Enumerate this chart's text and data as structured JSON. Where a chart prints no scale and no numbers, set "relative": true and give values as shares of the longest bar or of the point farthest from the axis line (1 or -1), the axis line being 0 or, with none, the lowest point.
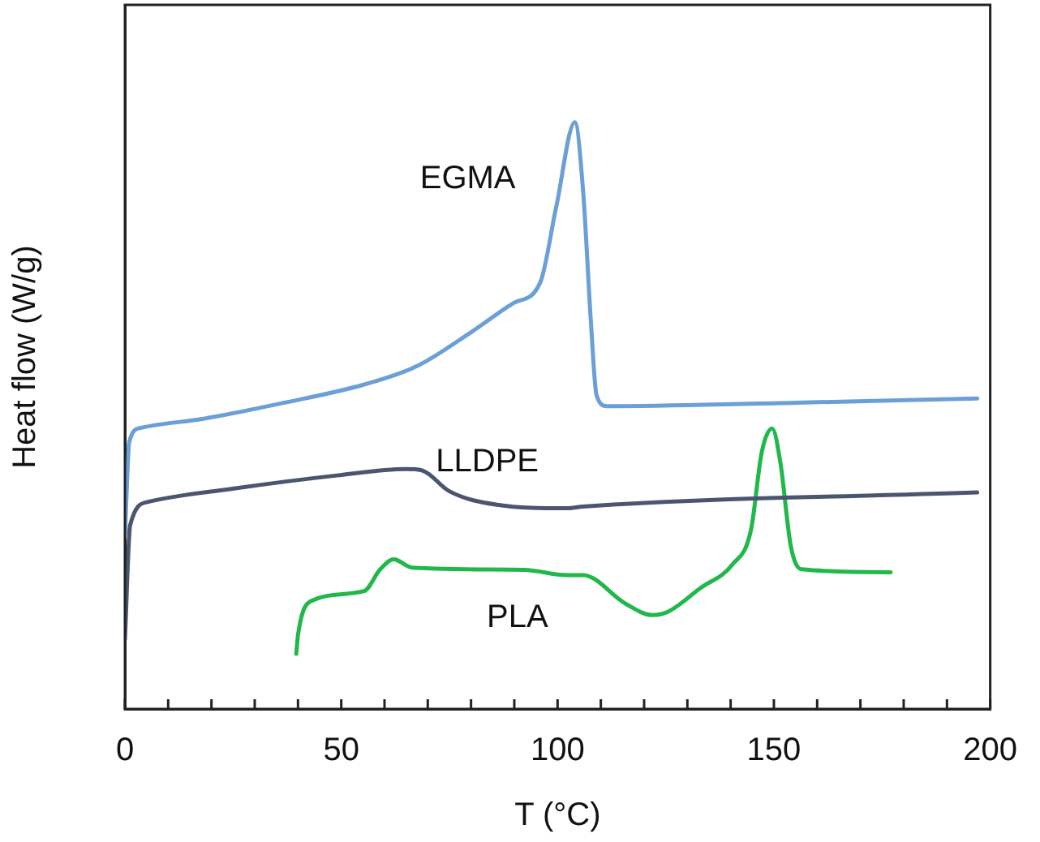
{
  "chart_data": {
    "type": "line",
    "xlabel": "T (°C)",
    "ylabel": "Heat flow (W/g)",
    "relative": true,
    "xlim": [
      0,
      200
    ],
    "xticks": [
      0,
      {
        "value": 10,
        "label": null
      },
      {
        "value": 20,
        "label": null
      },
      {
        "value": 30,
        "label": null
      },
      {
        "value": 40,
        "label": null
      },
      50,
      {
        "value": 60,
        "label": null
      },
      {
        "value": 70,
        "label": null
      },
      {
        "value": 80,
        "label": null
      },
      {
        "value": 90,
        "label": null
      },
      100,
      {
        "value": 110,
        "label": null
      },
      {
        "value": 120,
        "label": null
      },
      {
        "value": 130,
        "label": null
      },
      {
        "value": 140,
        "label": null
      },
      150,
      {
        "value": 160,
        "label": null
      },
      {
        "value": 170,
        "label": null
      },
      {
        "value": 180,
        "label": null
      },
      {
        "value": 190,
        "label": null
      },
      200
    ],
    "grid": false,
    "legend": false,
    "marker": "none",
    "line_style": "solid",
    "series": [
      {
        "name": "EGMA",
        "color": "#6a9fd8",
        "x": [
          0,
          1,
          3.6,
          18.4,
          36.9,
          55.3,
          67.7,
          80,
          89.9,
          96,
          99.7,
          104,
          105.9,
          107.7,
          109,
          111.4,
          155,
          197
        ],
        "values": [
          0.294,
          0.455,
          0.479,
          0.495,
          0.522,
          0.553,
          0.585,
          0.642,
          0.692,
          0.727,
          0.856,
          1.0,
          0.883,
          0.66,
          0.535,
          0.516,
          0.522,
          0.529
        ]
      },
      {
        "name": "LLDPE",
        "color": "#4a5670",
        "x": [
          0,
          1.2,
          5.4,
          24.5,
          49,
          65,
          68.9,
          75,
          86,
          102,
          105.9,
          197
        ],
        "values": [
          0.118,
          0.313,
          0.353,
          0.375,
          0.398,
          0.409,
          0.406,
          0.371,
          0.348,
          0.342,
          0.345,
          0.369
        ]
      },
      {
        "name": "PLA",
        "color": "#20b84a",
        "x": [
          39.6,
          40,
          43,
          55.3,
          59,
          62.1,
          66.4,
          92.3,
          102.1,
          105.9,
          115.8,
          121.9,
          125.6,
          133,
          140.4,
          144.7,
          147.2,
          149.6,
          151.5,
          153.9,
          156.4,
          177
        ],
        "values": [
          0.094,
          0.126,
          0.184,
          0.201,
          0.238,
          0.255,
          0.241,
          0.237,
          0.228,
          0.228,
          0.179,
          0.16,
          0.166,
          0.206,
          0.246,
          0.305,
          0.438,
          0.478,
          0.42,
          0.278,
          0.238,
          0.233
        ]
      }
    ]
  }
}
